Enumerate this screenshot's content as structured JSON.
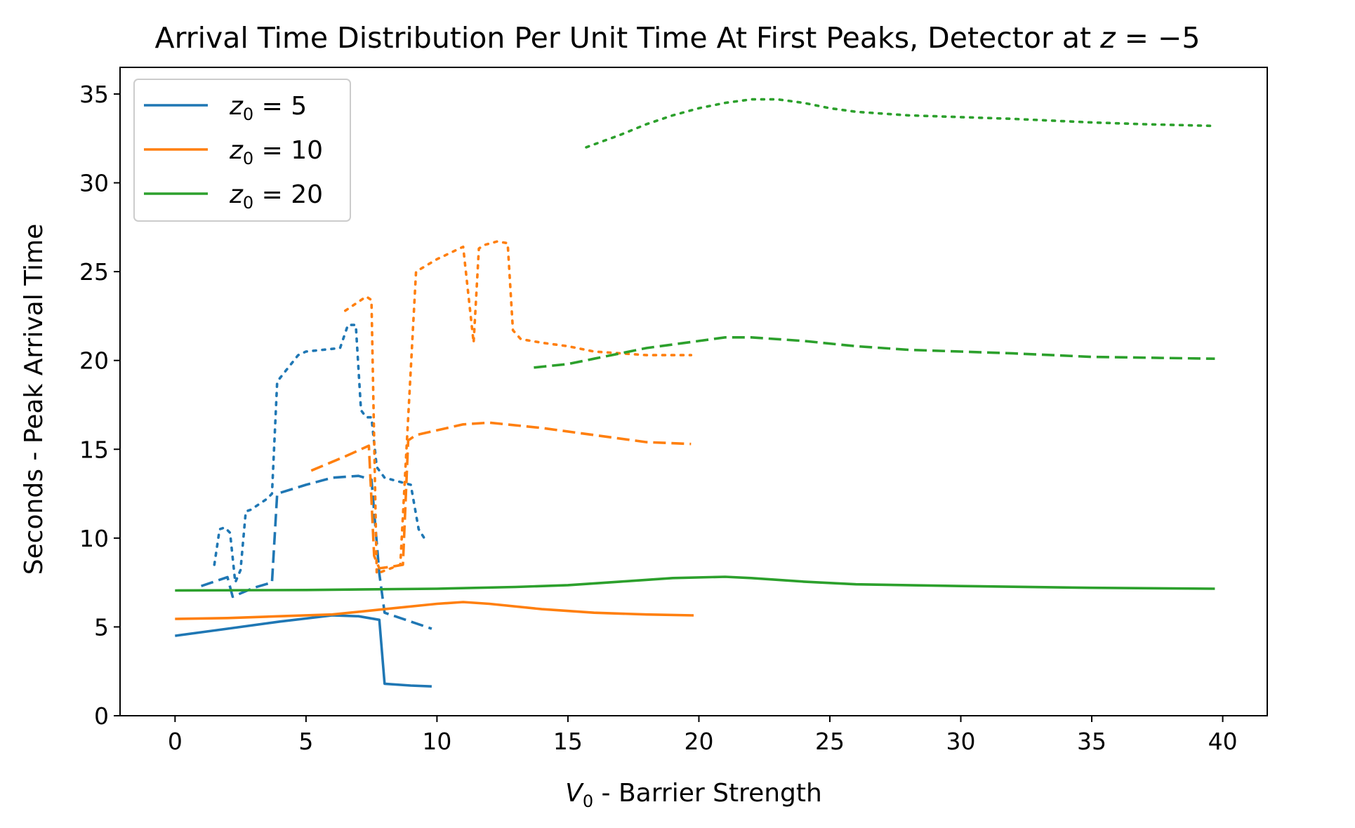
{
  "chart_data": {
    "type": "line",
    "title": {
      "prefix": "Arrival Time Distribution Per Unit Time At First Peaks, Detector at ",
      "math_var": "z",
      "math_rest": " = −5"
    },
    "xlabel": {
      "math_var": "V",
      "math_sub": "0",
      "rest": " - Barrier Strength"
    },
    "ylabel": "Seconds - Peak Arrival Time",
    "xlim": [
      -2.1,
      41.7
    ],
    "ylim": [
      0,
      36.5
    ],
    "x_ticks": [
      0,
      5,
      10,
      15,
      20,
      25,
      30,
      35,
      40
    ],
    "y_ticks": [
      0,
      5,
      10,
      15,
      20,
      25,
      30,
      35
    ],
    "grid": false,
    "legend": {
      "placement": "top-left",
      "entries": [
        {
          "var": "z",
          "sub": "0",
          "rest": " = 5",
          "color": "#1f77b4"
        },
        {
          "var": "z",
          "sub": "0",
          "rest": " = 10",
          "color": "#ff7f0e"
        },
        {
          "var": "z",
          "sub": "0",
          "rest": " = 20",
          "color": "#2ca02c"
        }
      ]
    },
    "series": [
      {
        "group": 0,
        "style": "solid",
        "color": "#1f77b4",
        "x": [
          0,
          2,
          4,
          6,
          7,
          7.8,
          8.0,
          9.0,
          9.8
        ],
        "y": [
          4.5,
          4.9,
          5.3,
          5.65,
          5.6,
          5.4,
          1.8,
          1.7,
          1.65
        ]
      },
      {
        "group": 0,
        "style": "dashed",
        "color": "#1f77b4",
        "x": [
          1.0,
          2.0,
          2.2,
          3.0,
          3.7,
          3.9,
          5.0,
          6.0,
          7.0,
          7.5,
          7.8,
          8.0,
          9.0,
          9.8
        ],
        "y": [
          7.3,
          7.8,
          6.7,
          7.2,
          7.5,
          12.5,
          13.0,
          13.4,
          13.5,
          13.3,
          8.0,
          5.8,
          5.3,
          4.9
        ]
      },
      {
        "group": 0,
        "style": "dotted",
        "color": "#1f77b4",
        "x": [
          1.5,
          1.7,
          1.9,
          2.1,
          2.3,
          2.5,
          2.7,
          2.9,
          3.5,
          3.7,
          3.9,
          4.0,
          4.7,
          5.0,
          6.3,
          6.6,
          6.9,
          7.1,
          7.3,
          7.5,
          7.7,
          8.0,
          8.5,
          9.0,
          9.3,
          9.6
        ],
        "y": [
          8.5,
          10.5,
          10.6,
          10.3,
          7.5,
          8.2,
          11.5,
          11.6,
          12.2,
          12.5,
          18.8,
          19.0,
          20.3,
          20.5,
          20.7,
          22.0,
          22.0,
          17.2,
          16.8,
          16.8,
          14.0,
          13.4,
          13.2,
          13.0,
          10.5,
          9.8
        ]
      },
      {
        "group": 1,
        "style": "solid",
        "color": "#ff7f0e",
        "x": [
          0,
          2,
          4,
          6,
          8,
          10,
          11,
          12,
          14,
          16,
          18,
          19.8
        ],
        "y": [
          5.45,
          5.5,
          5.6,
          5.7,
          6.0,
          6.3,
          6.4,
          6.3,
          6.0,
          5.8,
          5.7,
          5.65
        ]
      },
      {
        "group": 1,
        "style": "dashed",
        "color": "#ff7f0e",
        "x": [
          5.2,
          6.5,
          7.4,
          7.6,
          7.8,
          8.3,
          8.7,
          8.9,
          9.2,
          11.0,
          12.0,
          14.0,
          16.0,
          18.0,
          19.7
        ],
        "y": [
          13.8,
          14.6,
          15.2,
          9.0,
          8.3,
          8.4,
          8.5,
          15.5,
          15.8,
          16.4,
          16.5,
          16.2,
          15.8,
          15.4,
          15.3
        ]
      },
      {
        "group": 1,
        "style": "dotted",
        "color": "#ff7f0e",
        "x": [
          6.5,
          7.3,
          7.5,
          7.7,
          8.6,
          8.8,
          9.2,
          10.0,
          11.0,
          11.4,
          11.6,
          11.8,
          12.3,
          12.7,
          12.9,
          13.2,
          14.0,
          15.0,
          16.0,
          18.0,
          19.7
        ],
        "y": [
          22.8,
          23.6,
          23.4,
          8.0,
          8.5,
          14.0,
          25.0,
          25.7,
          26.4,
          21.0,
          26.3,
          26.5,
          26.7,
          26.6,
          21.7,
          21.2,
          21.0,
          20.8,
          20.5,
          20.3,
          20.3
        ]
      },
      {
        "group": 2,
        "style": "solid",
        "color": "#2ca02c",
        "x": [
          0,
          5,
          10,
          13,
          15,
          17,
          19,
          21,
          22,
          24,
          26,
          30,
          35,
          39.7
        ],
        "y": [
          7.05,
          7.08,
          7.15,
          7.25,
          7.35,
          7.55,
          7.75,
          7.82,
          7.75,
          7.55,
          7.4,
          7.3,
          7.2,
          7.15
        ]
      },
      {
        "group": 2,
        "style": "dashed",
        "color": "#2ca02c",
        "x": [
          13.7,
          15.0,
          16.0,
          18.0,
          20.0,
          21.0,
          22.0,
          24.0,
          26.0,
          28.0,
          30.0,
          32.0,
          35.0,
          39.7
        ],
        "y": [
          19.6,
          19.8,
          20.1,
          20.7,
          21.1,
          21.3,
          21.3,
          21.1,
          20.8,
          20.6,
          20.5,
          20.4,
          20.2,
          20.1
        ]
      },
      {
        "group": 2,
        "style": "dotted",
        "color": "#2ca02c",
        "x": [
          15.7,
          17.0,
          18.0,
          19.0,
          20.0,
          21.0,
          22.0,
          23.0,
          24.0,
          25.0,
          26.0,
          28.0,
          30.0,
          32.0,
          35.0,
          37.0,
          39.7
        ],
        "y": [
          32.0,
          32.7,
          33.3,
          33.8,
          34.2,
          34.5,
          34.7,
          34.7,
          34.5,
          34.2,
          34.0,
          33.8,
          33.7,
          33.6,
          33.4,
          33.3,
          33.2
        ]
      }
    ]
  }
}
